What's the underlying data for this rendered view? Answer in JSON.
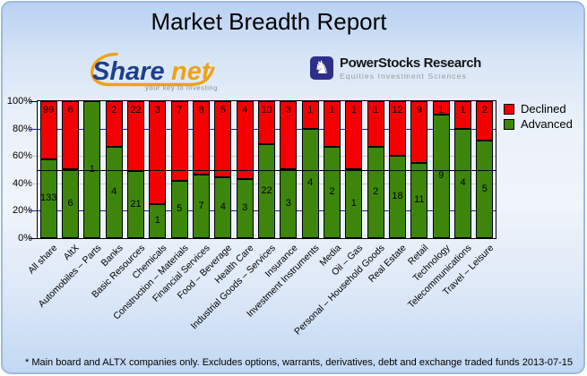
{
  "title": "Market Breadth Report",
  "logos": {
    "sharenet": {
      "name": "Sharenet",
      "word_part1": "Share",
      "word_part2": "net",
      "tagline": "your key to investing",
      "navy": "#1d3f8e",
      "orange": "#eda317"
    },
    "powerstocks": {
      "line1": "PowerStocks  Research",
      "line2": "Equities Investment Sciences",
      "knight_icon": "chess-knight-icon",
      "square_color": "#2e2e8c"
    }
  },
  "chart_data": {
    "type": "bar",
    "stacked": true,
    "normalized": "percent-of-total",
    "categories": [
      "All share",
      "AltX",
      "Automobiles – Parts",
      "Banks",
      "Basic Resources",
      "Chemicals",
      "Construction – Materials",
      "Financial Services",
      "Food – Beverage",
      "Health Care",
      "Industrial Goods – Services",
      "Insurance",
      "Investment Instruments",
      "Media",
      "Oil – Gas",
      "Personal – Household Goods",
      "Real Estate",
      "Retail",
      "Technology",
      "Telecommunications",
      "Travel – Leisure"
    ],
    "series": [
      {
        "name": "Declined",
        "color": "#f50000",
        "values": [
          99,
          6,
          0,
          2,
          22,
          3,
          7,
          8,
          5,
          4,
          10,
          3,
          1,
          1,
          1,
          1,
          12,
          9,
          1,
          1,
          2
        ]
      },
      {
        "name": "Advanced",
        "color": "#3d860b",
        "values": [
          133,
          6,
          1,
          4,
          21,
          1,
          5,
          7,
          4,
          3,
          22,
          3,
          4,
          2,
          1,
          2,
          18,
          11,
          9,
          4,
          5
        ]
      }
    ],
    "ylim": [
      0,
      100
    ],
    "y_tick_labels": [
      "0%",
      "20%",
      "40%",
      "60%",
      "80%",
      "100%"
    ],
    "grid": {
      "navy_lines_pct": [
        20,
        80
      ],
      "gray_lines_pct": [
        40,
        60
      ],
      "reference_line_pct": 50,
      "navy_color": "#2020a0",
      "gray_color": "#c8c8c8",
      "reference_color": "#000000"
    },
    "legend_position": "top-right",
    "xlabel": "",
    "ylabel": ""
  },
  "footer": {
    "note": "* Main board and ALTX companies only. Excludes options, warrants, derivatives, debt and exchange traded funds",
    "date": "2013-07-15"
  }
}
